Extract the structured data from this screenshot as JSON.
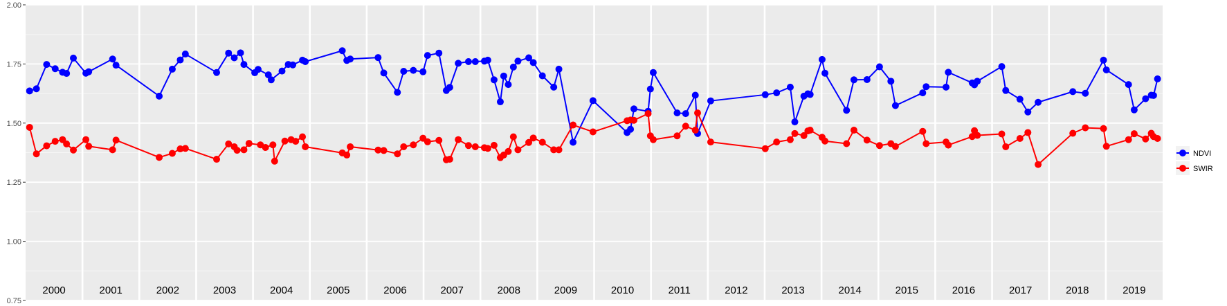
{
  "chart_data": {
    "type": "line",
    "ylim": [
      0.75,
      2.0
    ],
    "yticks": [
      "0.75",
      "1.00",
      "1.25",
      "1.50",
      "1.75",
      "2.00"
    ],
    "xlim": [
      2000.0,
      2020.0
    ],
    "year_labels": [
      "2000",
      "2001",
      "2002",
      "2003",
      "2004",
      "2005",
      "2006",
      "2007",
      "2008",
      "2009",
      "2010",
      "2011",
      "2012",
      "2013",
      "2014",
      "2015",
      "2016",
      "2017",
      "2018",
      "2019"
    ],
    "legend_position": "right",
    "grid": true,
    "series": [
      {
        "name": "NDVI",
        "color": "#0000ff",
        "points": [
          [
            2000.07,
            1.636
          ],
          [
            2000.19,
            1.645
          ],
          [
            2000.37,
            1.748
          ],
          [
            2000.52,
            1.73
          ],
          [
            2000.65,
            1.715
          ],
          [
            2000.72,
            1.71
          ],
          [
            2000.84,
            1.775
          ],
          [
            2001.06,
            1.711
          ],
          [
            2001.11,
            1.717
          ],
          [
            2001.53,
            1.771
          ],
          [
            2001.59,
            1.745
          ],
          [
            2002.35,
            1.614
          ],
          [
            2002.58,
            1.728
          ],
          [
            2002.72,
            1.767
          ],
          [
            2002.81,
            1.792
          ],
          [
            2003.36,
            1.714
          ],
          [
            2003.57,
            1.796
          ],
          [
            2003.67,
            1.776
          ],
          [
            2003.78,
            1.797
          ],
          [
            2003.84,
            1.748
          ],
          [
            2004.03,
            1.713
          ],
          [
            2004.09,
            1.727
          ],
          [
            2004.27,
            1.704
          ],
          [
            2004.32,
            1.683
          ],
          [
            2004.51,
            1.72
          ],
          [
            2004.62,
            1.748
          ],
          [
            2004.7,
            1.746
          ],
          [
            2004.87,
            1.766
          ],
          [
            2004.92,
            1.76
          ],
          [
            2005.57,
            1.806
          ],
          [
            2005.65,
            1.765
          ],
          [
            2005.71,
            1.771
          ],
          [
            2006.2,
            1.777
          ],
          [
            2006.3,
            1.712
          ],
          [
            2006.54,
            1.63
          ],
          [
            2006.65,
            1.719
          ],
          [
            2006.82,
            1.723
          ],
          [
            2006.99,
            1.717
          ],
          [
            2007.07,
            1.786
          ],
          [
            2007.27,
            1.796
          ],
          [
            2007.4,
            1.638
          ],
          [
            2007.46,
            1.651
          ],
          [
            2007.61,
            1.753
          ],
          [
            2007.79,
            1.76
          ],
          [
            2007.91,
            1.76
          ],
          [
            2008.07,
            1.762
          ],
          [
            2008.13,
            1.766
          ],
          [
            2008.24,
            1.683
          ],
          [
            2008.35,
            1.59
          ],
          [
            2008.41,
            1.699
          ],
          [
            2008.49,
            1.663
          ],
          [
            2008.58,
            1.737
          ],
          [
            2008.66,
            1.762
          ],
          [
            2008.85,
            1.776
          ],
          [
            2008.93,
            1.756
          ],
          [
            2009.09,
            1.7
          ],
          [
            2009.29,
            1.652
          ],
          [
            2009.38,
            1.728
          ],
          [
            2009.63,
            1.419
          ],
          [
            2009.98,
            1.595
          ],
          [
            2010.58,
            1.46
          ],
          [
            2010.64,
            1.474
          ],
          [
            2010.7,
            1.56
          ],
          [
            2010.95,
            1.55
          ],
          [
            2010.99,
            1.644
          ],
          [
            2011.04,
            1.714
          ],
          [
            2011.46,
            1.543
          ],
          [
            2011.61,
            1.54
          ],
          [
            2011.78,
            1.618
          ],
          [
            2011.82,
            1.456
          ],
          [
            2012.05,
            1.594
          ],
          [
            2013.01,
            1.62
          ],
          [
            2013.21,
            1.628
          ],
          [
            2013.45,
            1.652
          ],
          [
            2013.53,
            1.505
          ],
          [
            2013.69,
            1.614
          ],
          [
            2013.76,
            1.624
          ],
          [
            2013.8,
            1.621
          ],
          [
            2014.01,
            1.769
          ],
          [
            2014.06,
            1.711
          ],
          [
            2014.44,
            1.554
          ],
          [
            2014.57,
            1.683
          ],
          [
            2014.8,
            1.684
          ],
          [
            2015.02,
            1.738
          ],
          [
            2015.22,
            1.677
          ],
          [
            2015.3,
            1.574
          ],
          [
            2015.78,
            1.628
          ],
          [
            2015.84,
            1.654
          ],
          [
            2016.19,
            1.652
          ],
          [
            2016.23,
            1.715
          ],
          [
            2016.65,
            1.67
          ],
          [
            2016.69,
            1.662
          ],
          [
            2016.74,
            1.677
          ],
          [
            2017.17,
            1.739
          ],
          [
            2017.24,
            1.638
          ],
          [
            2017.49,
            1.601
          ],
          [
            2017.63,
            1.547
          ],
          [
            2017.81,
            1.588
          ],
          [
            2018.42,
            1.633
          ],
          [
            2018.64,
            1.626
          ],
          [
            2018.96,
            1.766
          ],
          [
            2019.01,
            1.725
          ],
          [
            2019.4,
            1.663
          ],
          [
            2019.5,
            1.556
          ],
          [
            2019.7,
            1.603
          ],
          [
            2019.8,
            1.618
          ],
          [
            2019.84,
            1.617
          ],
          [
            2019.91,
            1.687
          ]
        ]
      },
      {
        "name": "SWIR",
        "color": "#ff0000",
        "points": [
          [
            2000.07,
            1.482
          ],
          [
            2000.19,
            1.37
          ],
          [
            2000.37,
            1.404
          ],
          [
            2000.52,
            1.423
          ],
          [
            2000.65,
            1.43
          ],
          [
            2000.72,
            1.412
          ],
          [
            2000.84,
            1.386
          ],
          [
            2001.06,
            1.43
          ],
          [
            2001.11,
            1.402
          ],
          [
            2001.53,
            1.387
          ],
          [
            2001.59,
            1.428
          ],
          [
            2002.35,
            1.355
          ],
          [
            2002.58,
            1.372
          ],
          [
            2002.72,
            1.391
          ],
          [
            2002.81,
            1.393
          ],
          [
            2003.36,
            1.347
          ],
          [
            2003.57,
            1.412
          ],
          [
            2003.67,
            1.4
          ],
          [
            2003.72,
            1.385
          ],
          [
            2003.84,
            1.387
          ],
          [
            2003.93,
            1.414
          ],
          [
            2004.13,
            1.408
          ],
          [
            2004.22,
            1.397
          ],
          [
            2004.35,
            1.408
          ],
          [
            2004.38,
            1.339
          ],
          [
            2004.56,
            1.424
          ],
          [
            2004.67,
            1.43
          ],
          [
            2004.75,
            1.423
          ],
          [
            2004.87,
            1.442
          ],
          [
            2004.92,
            1.4
          ],
          [
            2005.57,
            1.374
          ],
          [
            2005.65,
            1.365
          ],
          [
            2005.71,
            1.4
          ],
          [
            2006.2,
            1.386
          ],
          [
            2006.3,
            1.384
          ],
          [
            2006.54,
            1.37
          ],
          [
            2006.65,
            1.4
          ],
          [
            2006.82,
            1.408
          ],
          [
            2006.99,
            1.436
          ],
          [
            2007.07,
            1.421
          ],
          [
            2007.27,
            1.427
          ],
          [
            2007.4,
            1.345
          ],
          [
            2007.46,
            1.347
          ],
          [
            2007.61,
            1.43
          ],
          [
            2007.79,
            1.405
          ],
          [
            2007.91,
            1.4
          ],
          [
            2008.07,
            1.396
          ],
          [
            2008.13,
            1.393
          ],
          [
            2008.24,
            1.406
          ],
          [
            2008.35,
            1.354
          ],
          [
            2008.41,
            1.365
          ],
          [
            2008.49,
            1.38
          ],
          [
            2008.58,
            1.442
          ],
          [
            2008.66,
            1.387
          ],
          [
            2008.85,
            1.418
          ],
          [
            2008.93,
            1.437
          ],
          [
            2009.09,
            1.419
          ],
          [
            2009.29,
            1.387
          ],
          [
            2009.38,
            1.387
          ],
          [
            2009.63,
            1.492
          ],
          [
            2009.98,
            1.463
          ],
          [
            2010.58,
            1.51
          ],
          [
            2010.64,
            1.513
          ],
          [
            2010.7,
            1.512
          ],
          [
            2010.95,
            1.54
          ],
          [
            2010.99,
            1.446
          ],
          [
            2011.04,
            1.43
          ],
          [
            2011.46,
            1.446
          ],
          [
            2011.61,
            1.487
          ],
          [
            2011.78,
            1.47
          ],
          [
            2011.82,
            1.543
          ],
          [
            2012.05,
            1.42
          ],
          [
            2013.01,
            1.392
          ],
          [
            2013.21,
            1.42
          ],
          [
            2013.45,
            1.43
          ],
          [
            2013.53,
            1.456
          ],
          [
            2013.69,
            1.447
          ],
          [
            2013.76,
            1.467
          ],
          [
            2013.8,
            1.47
          ],
          [
            2014.01,
            1.44
          ],
          [
            2014.06,
            1.424
          ],
          [
            2014.44,
            1.413
          ],
          [
            2014.57,
            1.47
          ],
          [
            2014.8,
            1.428
          ],
          [
            2015.02,
            1.405
          ],
          [
            2015.22,
            1.413
          ],
          [
            2015.3,
            1.401
          ],
          [
            2015.78,
            1.465
          ],
          [
            2015.84,
            1.413
          ],
          [
            2016.19,
            1.42
          ],
          [
            2016.23,
            1.407
          ],
          [
            2016.65,
            1.443
          ],
          [
            2016.69,
            1.468
          ],
          [
            2016.74,
            1.448
          ],
          [
            2017.17,
            1.454
          ],
          [
            2017.24,
            1.4
          ],
          [
            2017.49,
            1.435
          ],
          [
            2017.63,
            1.46
          ],
          [
            2017.81,
            1.325
          ],
          [
            2018.42,
            1.457
          ],
          [
            2018.64,
            1.48
          ],
          [
            2018.96,
            1.477
          ],
          [
            2019.01,
            1.402
          ],
          [
            2019.4,
            1.43
          ],
          [
            2019.5,
            1.455
          ],
          [
            2019.7,
            1.433
          ],
          [
            2019.8,
            1.457
          ],
          [
            2019.84,
            1.443
          ],
          [
            2019.91,
            1.435
          ]
        ]
      }
    ]
  }
}
